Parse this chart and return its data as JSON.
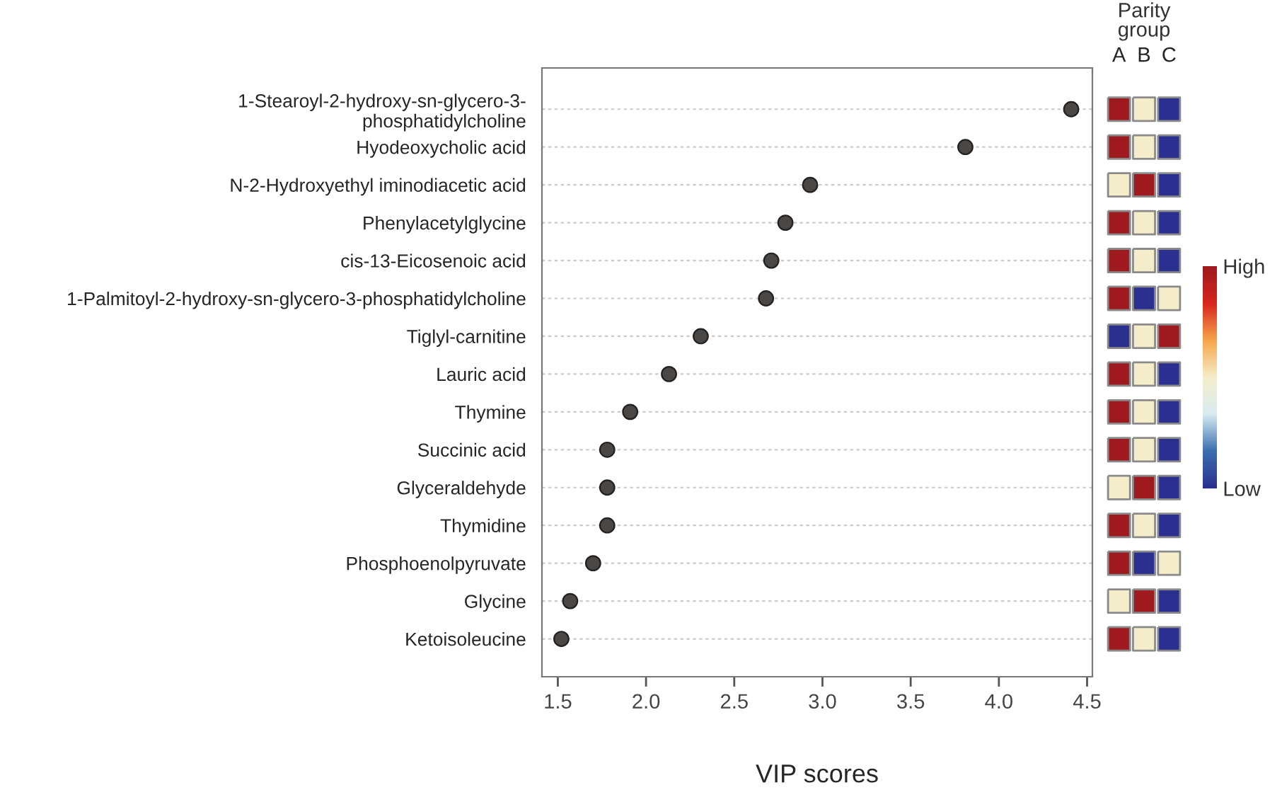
{
  "chart_data": [
    {
      "type": "scatter",
      "orientation": "horizontal",
      "xlabel": "VIP scores",
      "categories": [
        "1-Stearoyl-2-hydroxy-sn-glycero-3-\nphosphatidylcholine",
        "Hyodeoxycholic acid",
        "N-2-Hydroxyethyl iminodiacetic acid",
        "Phenylacetylglycine",
        "cis-13-Eicosenoic acid",
        "1-Palmitoyl-2-hydroxy-sn-glycero-3-phosphatidylcholine",
        "Tiglyl-carnitine",
        "Lauric acid",
        "Thymine",
        "Succinic acid",
        "Glyceraldehyde",
        "Thymidine",
        "Phosphoenolpyruvate",
        "Glycine",
        "Ketoisoleucine"
      ],
      "values": [
        4.41,
        3.81,
        2.93,
        2.79,
        2.71,
        2.68,
        2.31,
        2.13,
        1.91,
        1.78,
        1.78,
        1.78,
        1.7,
        1.57,
        1.52
      ],
      "color": "#4a4745",
      "marker": "circle",
      "xlim": [
        1.41,
        4.53
      ],
      "xticks": [
        1.5,
        {
          "value": 2,
          "label": "2.0"
        },
        2.5,
        {
          "value": 3,
          "label": "3.0"
        },
        3.5,
        {
          "value": 4,
          "label": "4.0"
        },
        4.5
      ],
      "grid": "y"
    },
    {
      "type": "heatmap",
      "title": "Parity\ngroup",
      "categories": [
        "A",
        "B",
        "C"
      ],
      "y_categories": [
        null,
        null,
        null,
        null,
        null,
        null,
        null,
        null,
        null,
        null,
        null,
        null,
        null,
        null,
        null
      ],
      "cells": [
        [
          1,
          0.5,
          0
        ],
        [
          1,
          0.5,
          0
        ],
        [
          0.5,
          1,
          0
        ],
        [
          1,
          0.5,
          0
        ],
        [
          1,
          0.5,
          0
        ],
        [
          1,
          0,
          0.5
        ],
        [
          0,
          0.5,
          1
        ],
        [
          1,
          0.5,
          0
        ],
        [
          1,
          0.5,
          0
        ],
        [
          1,
          0.5,
          0
        ],
        [
          0.5,
          1,
          0
        ],
        [
          1,
          0.5,
          0
        ],
        [
          1,
          0,
          0.5
        ],
        [
          0.5,
          1,
          0
        ],
        [
          1,
          0.5,
          0
        ]
      ],
      "clim": [
        0,
        1
      ],
      "cticks": [
        {
          "value": 0,
          "label": "Low"
        },
        {
          "value": 1,
          "label": "High"
        }
      ]
    }
  ]
}
